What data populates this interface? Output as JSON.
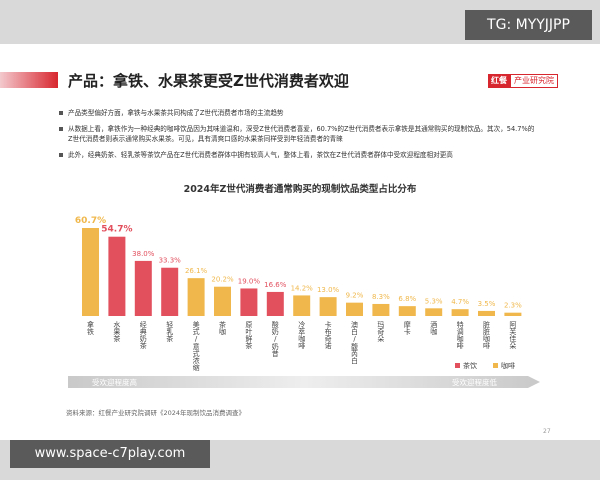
{
  "corner_tag": "TG: MYYJJPP",
  "site_tag": "www.space-c7play.com",
  "header": {
    "title": "产品：拿铁、水果茶更受Z世代消费者欢迎",
    "logo_main": "红餐",
    "logo_sub": "产业研究院"
  },
  "bullets": [
    "产品类型偏好方面，拿铁与水果茶共同构成了Z世代消费者市场的主流趋势",
    "从数据上看，拿铁作为一种经典的咖啡饮品因为其味道温和，深受Z世代消费者喜爱，60.7%的Z世代消费者表示拿铁是其通常购买的现制饮品。其次，54.7%的Z世代消费者则表示通常购买水果茶。可见，具有清爽口感的水果茶同样受到年轻消费者的青睐",
    "此外，经典奶茶、轻乳茶等茶饮产品在Z世代消费者群体中拥有较高人气，整体上看，茶饮在Z世代消费者群体中受欢迎程度相对更高"
  ],
  "chart_data": {
    "type": "bar",
    "title": "2024年Z世代消费者通常购买的现制饮品类型占比分布",
    "categories": [
      "拿铁",
      "水果茶",
      "经典奶茶",
      "轻乳茶",
      "美式/意式浓缩",
      "茶咖",
      "原叶鲜茶",
      "酸奶/奶昔",
      "冷萃咖啡",
      "卡布奇诺",
      "澳白/馥芮白",
      "玛奇朵",
      "摩卡",
      "酒咖",
      "特调咖啡",
      "脏脏咖啡",
      "阿芙佳朵"
    ],
    "series": [
      {
        "name": "茶饮",
        "color": "#e2505e",
        "values": [
          null,
          54.7,
          38.0,
          33.3,
          null,
          null,
          19.0,
          16.6,
          null,
          null,
          null,
          null,
          null,
          null,
          null,
          null,
          null
        ],
        "value_labels": [
          null,
          "54.7%",
          "38.0%",
          "33.3%",
          null,
          null,
          "19.0%",
          "16.6%",
          null,
          null,
          null,
          null,
          null,
          null,
          null,
          null,
          null
        ]
      },
      {
        "name": "咖啡",
        "color": "#f0b84c",
        "values": [
          60.7,
          null,
          null,
          null,
          26.1,
          20.2,
          null,
          null,
          14.2,
          13.0,
          9.2,
          8.3,
          6.8,
          5.3,
          4.7,
          3.5,
          2.3
        ],
        "value_labels": [
          "60.7%",
          null,
          null,
          null,
          "26.1%",
          "20.2%",
          null,
          null,
          "14.2%",
          "13.0%",
          "9.2%",
          "8.3%",
          "6.8%",
          "5.3%",
          "4.7%",
          "3.5%",
          "2.3%"
        ]
      }
    ],
    "arrow_left": "受欢迎程度高",
    "arrow_right": "受欢迎程度低",
    "legend": "bottom-right"
  },
  "source": "资料来源：红餐产业研究院调研《2024年现制饮品消费调查》",
  "page_number": "27"
}
